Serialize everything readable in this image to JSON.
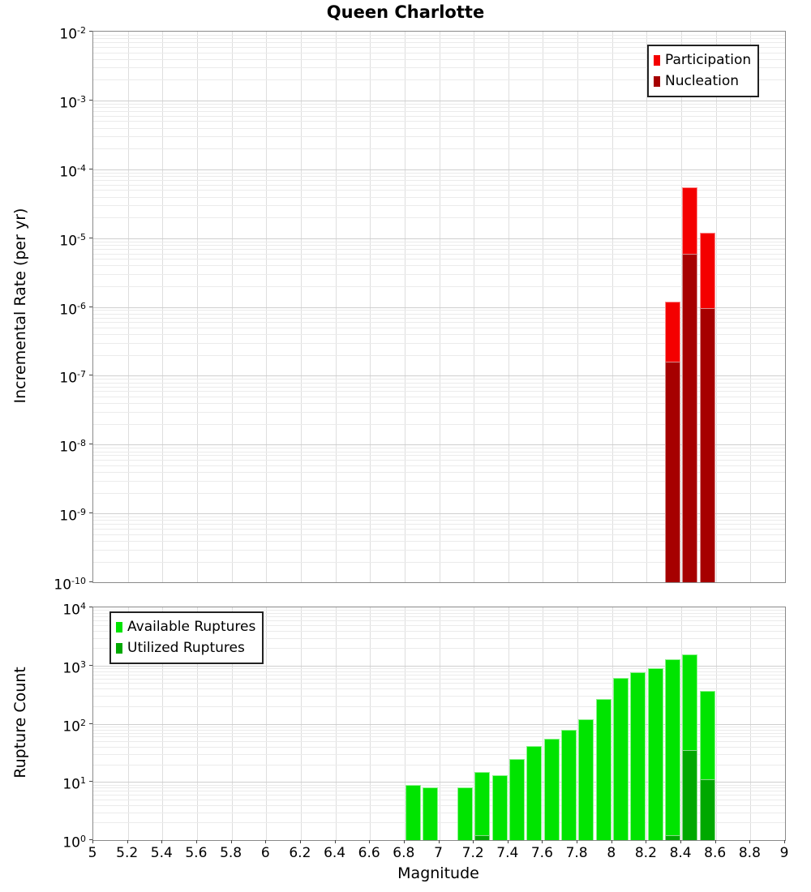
{
  "title": "Queen Charlotte",
  "x_axis": {
    "label": "Magnitude",
    "tick_labels": [
      "5",
      "5.2",
      "5.4",
      "5.6",
      "5.8",
      "6",
      "6.2",
      "6.4",
      "6.6",
      "6.8",
      "7",
      "7.2",
      "7.4",
      "7.6",
      "7.8",
      "8",
      "8.2",
      "8.4",
      "8.6",
      "8.8",
      "9"
    ]
  },
  "charts": [
    {
      "id": "rate",
      "y_axis_label": "Incremental Rate (per yr)",
      "y_tick_exponents": [
        -2,
        -3,
        -4,
        -5,
        -6,
        -7,
        -8,
        -9,
        -10
      ],
      "legend": {
        "position": "top-right",
        "items": [
          {
            "label": "Participation",
            "color": "#f40000"
          },
          {
            "label": "Nucleation",
            "color": "#a60000"
          }
        ]
      },
      "chart_data": {
        "type": "bar",
        "x": [
          8.35,
          8.45,
          8.55
        ],
        "series": [
          {
            "name": "Participation",
            "color": "#f40000",
            "values": [
              1.2e-06,
              5.5e-05,
              1.2e-05
            ]
          },
          {
            "name": "Nucleation",
            "color": "#a60000",
            "values": [
              1.6e-07,
              6e-06,
              9.5e-07
            ]
          }
        ],
        "title": "Queen Charlotte",
        "xlabel": "Magnitude",
        "ylabel": "Incremental Rate (per yr)",
        "xlim": [
          5,
          9
        ],
        "ylim": [
          1e-10,
          0.01
        ],
        "yscale": "log",
        "bin_width": 0.1,
        "grid": true,
        "legend_position": "top-right"
      }
    },
    {
      "id": "count",
      "y_axis_label": "Rupture Count",
      "y_tick_exponents": [
        4,
        3,
        2,
        1,
        0
      ],
      "legend": {
        "position": "top-left",
        "items": [
          {
            "label": "Available Ruptures",
            "color": "#00e400"
          },
          {
            "label": "Utilized Ruptures",
            "color": "#00a800"
          }
        ]
      },
      "chart_data": {
        "type": "bar",
        "x": [
          6.85,
          6.95,
          7.15,
          7.25,
          7.35,
          7.45,
          7.55,
          7.65,
          7.75,
          7.85,
          7.95,
          8.05,
          8.15,
          8.25,
          8.35,
          8.45,
          8.55
        ],
        "series": [
          {
            "name": "Available Ruptures",
            "color": "#00e400",
            "values": [
              9,
              8,
              8,
              15,
              13,
              25,
              42,
              55,
              80,
              120,
              265,
              620,
              775,
              890,
              1270,
              1570,
              370
            ]
          },
          {
            "name": "Utilized Ruptures",
            "color": "#00a800",
            "values": [
              0,
              0,
              0,
              1,
              0,
              0,
              0,
              0,
              0,
              0,
              0,
              0,
              0,
              0,
              1,
              35,
              11
            ]
          }
        ],
        "title": "",
        "xlabel": "Magnitude",
        "ylabel": "Rupture Count",
        "xlim": [
          5,
          9
        ],
        "ylim": [
          1,
          10000.0
        ],
        "yscale": "log",
        "bin_width": 0.1,
        "grid": true,
        "legend_position": "top-left"
      }
    }
  ]
}
